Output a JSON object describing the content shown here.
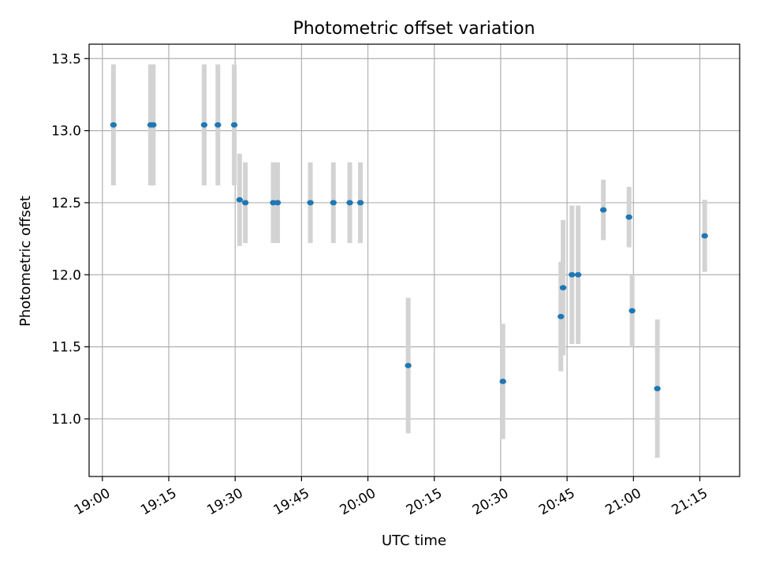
{
  "colors": {
    "point": "#1f77b4",
    "errorbar": "#d3d3d3",
    "grid": "#b0b0b0",
    "axis": "#000000",
    "background": "#ffffff"
  },
  "chart_data": {
    "type": "scatter",
    "title": "Photometric offset variation",
    "xlabel": "UTC time",
    "ylabel": "Photometric offset",
    "grid": true,
    "x_units": "minutes since 19:00 UTC",
    "xlim": [
      -3,
      144
    ],
    "ylim": [
      10.6,
      13.6
    ],
    "x_ticks": [
      {
        "value": 0,
        "label": "19:00"
      },
      {
        "value": 15,
        "label": "19:15"
      },
      {
        "value": 30,
        "label": "19:30"
      },
      {
        "value": 45,
        "label": "19:45"
      },
      {
        "value": 60,
        "label": "20:00"
      },
      {
        "value": 75,
        "label": "20:15"
      },
      {
        "value": 90,
        "label": "20:30"
      },
      {
        "value": 105,
        "label": "20:45"
      },
      {
        "value": 120,
        "label": "21:00"
      },
      {
        "value": 135,
        "label": "21:15"
      }
    ],
    "y_ticks": [
      {
        "value": 11.0,
        "label": "11.0"
      },
      {
        "value": 11.5,
        "label": "11.5"
      },
      {
        "value": 12.0,
        "label": "12.0"
      },
      {
        "value": 12.5,
        "label": "12.5"
      },
      {
        "value": 13.0,
        "label": "13.0"
      },
      {
        "value": 13.5,
        "label": "13.5"
      }
    ],
    "series": [
      {
        "name": "Photometric offset",
        "points": [
          {
            "x": 2.5,
            "y": 13.04,
            "err": 0.42
          },
          {
            "x": 10.9,
            "y": 13.04,
            "err": 0.42
          },
          {
            "x": 11.5,
            "y": 13.04,
            "err": 0.42
          },
          {
            "x": 23.0,
            "y": 13.04,
            "err": 0.42
          },
          {
            "x": 26.1,
            "y": 13.04,
            "err": 0.42
          },
          {
            "x": 29.8,
            "y": 13.04,
            "err": 0.42
          },
          {
            "x": 31.0,
            "y": 12.52,
            "err": 0.32
          },
          {
            "x": 32.3,
            "y": 12.5,
            "err": 0.28
          },
          {
            "x": 38.6,
            "y": 12.5,
            "err": 0.28
          },
          {
            "x": 39.6,
            "y": 12.5,
            "err": 0.28
          },
          {
            "x": 47.0,
            "y": 12.5,
            "err": 0.28
          },
          {
            "x": 52.2,
            "y": 12.5,
            "err": 0.28
          },
          {
            "x": 55.9,
            "y": 12.5,
            "err": 0.28
          },
          {
            "x": 58.3,
            "y": 12.5,
            "err": 0.28
          },
          {
            "x": 69.1,
            "y": 11.37,
            "err": 0.47
          },
          {
            "x": 90.5,
            "y": 11.26,
            "err": 0.4
          },
          {
            "x": 103.6,
            "y": 11.71,
            "err": 0.38
          },
          {
            "x": 104.1,
            "y": 11.91,
            "err": 0.47
          },
          {
            "x": 106.1,
            "y": 12.0,
            "err": 0.48
          },
          {
            "x": 107.5,
            "y": 12.0,
            "err": 0.48
          },
          {
            "x": 113.2,
            "y": 12.45,
            "err": 0.21
          },
          {
            "x": 119.0,
            "y": 12.4,
            "err": 0.21
          },
          {
            "x": 119.7,
            "y": 11.75,
            "err": 0.25
          },
          {
            "x": 125.4,
            "y": 11.21,
            "err": 0.48
          },
          {
            "x": 136.1,
            "y": 12.27,
            "err": 0.25
          }
        ]
      }
    ]
  }
}
